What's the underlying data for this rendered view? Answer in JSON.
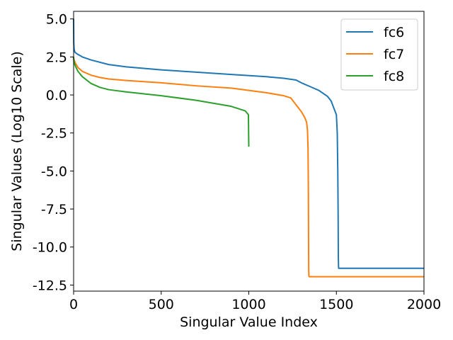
{
  "chart_data": {
    "type": "line",
    "title": "",
    "xlabel": "Singular Value   Index",
    "ylabel": "Singular Values (Log10 Scale)",
    "xlim": [
      0,
      2000
    ],
    "ylim": [
      -12.9,
      5.5
    ],
    "x_ticks": [
      0,
      500,
      1000,
      1500,
      2000
    ],
    "x_tick_labels": [
      "0",
      "500",
      "1000",
      "1500",
      "2000"
    ],
    "y_ticks": [
      5.0,
      2.5,
      0.0,
      -2.5,
      -5.0,
      -7.5,
      -10.0,
      -12.5
    ],
    "y_tick_labels": [
      "5.0",
      "2.5",
      "0.0",
      "-2.5",
      "-5.0",
      "-7.5",
      "-10.0",
      "-12.5"
    ],
    "grid": false,
    "legend_position": "top-right",
    "series": [
      {
        "name": "fc6",
        "color": "#1f77b4",
        "x": [
          0,
          1,
          3,
          8,
          20,
          50,
          100,
          200,
          300,
          500,
          700,
          900,
          1100,
          1200,
          1270,
          1300,
          1350,
          1400,
          1450,
          1470,
          1480,
          1490,
          1500,
          1505,
          1508,
          1510,
          1511,
          1512,
          1513,
          1514,
          1600,
          1800,
          2000
        ],
        "y": [
          5.0,
          3.4,
          3.0,
          2.8,
          2.7,
          2.5,
          2.3,
          2.0,
          1.85,
          1.65,
          1.5,
          1.35,
          1.2,
          1.1,
          0.98,
          0.8,
          0.55,
          0.3,
          -0.1,
          -0.4,
          -0.7,
          -1.0,
          -1.3,
          -2.5,
          -5.0,
          -8.0,
          -10.5,
          -11.2,
          -11.4,
          -11.4,
          -11.4,
          -11.4,
          -11.4
        ]
      },
      {
        "name": "fc7",
        "color": "#ff7f0e",
        "x": [
          0,
          1,
          3,
          10,
          25,
          50,
          100,
          150,
          200,
          300,
          500,
          700,
          900,
          1000,
          1100,
          1200,
          1240,
          1260,
          1280,
          1300,
          1320,
          1330,
          1335,
          1338,
          1340,
          1341,
          1342,
          1343,
          1345,
          1500,
          1800,
          2000
        ],
        "y": [
          2.5,
          2.4,
          2.3,
          2.1,
          1.8,
          1.55,
          1.3,
          1.15,
          1.05,
          0.95,
          0.8,
          0.6,
          0.45,
          0.3,
          0.15,
          -0.05,
          -0.2,
          -0.5,
          -0.8,
          -1.1,
          -1.5,
          -1.8,
          -2.3,
          -3.5,
          -6.0,
          -9.0,
          -11.5,
          -11.9,
          -11.95,
          -11.95,
          -11.95,
          -11.95
        ]
      },
      {
        "name": "fc8",
        "color": "#2ca02c",
        "x": [
          0,
          1,
          3,
          10,
          25,
          50,
          100,
          150,
          200,
          300,
          500,
          700,
          900,
          980,
          998,
          999,
          1000
        ],
        "y": [
          2.5,
          2.3,
          2.15,
          1.9,
          1.55,
          1.2,
          0.75,
          0.5,
          0.35,
          0.2,
          -0.05,
          -0.35,
          -0.75,
          -1.05,
          -1.3,
          -2.5,
          -3.4
        ]
      }
    ]
  }
}
